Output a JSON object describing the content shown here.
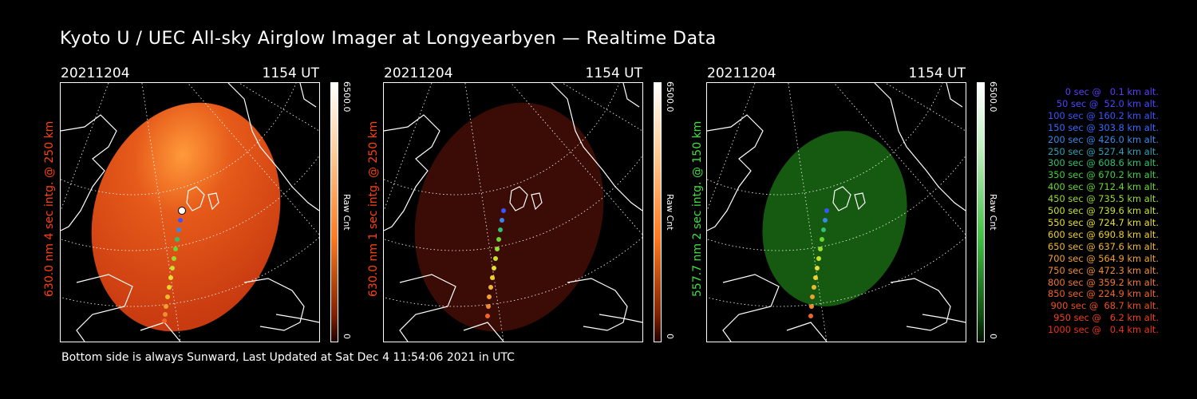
{
  "title": "Kyoto U / UEC All-sky Airglow Imager at Longyearbyen — Realtime Data",
  "footer": "Bottom side is always Sunward, Last Updated at Sat Dec  4 11:54:06 2021 in UTC",
  "panels": [
    {
      "date": "20211204",
      "time": "1154 UT",
      "label": "630.0 nm 4 sec intg. @ 250 km",
      "label_color": "#ff4010",
      "glow": "red",
      "cbar_max": "6500.0",
      "cbar_min": "0",
      "cbar_unit": "Raw Cnt"
    },
    {
      "date": "20211204",
      "time": "1154 UT",
      "label": "630.0 nm 1 sec intg. @ 250 km",
      "label_color": "#ff4010",
      "glow": "darkred",
      "cbar_max": "6500.0",
      "cbar_min": "0",
      "cbar_unit": "Raw Cnt"
    },
    {
      "date": "20211204",
      "time": "1154 UT",
      "label": "557.7 nm 2 sec intg. @ 150 km",
      "label_color": "#40e040",
      "glow": "green",
      "cbar_max": "6500.0",
      "cbar_min": "0",
      "cbar_unit": "Raw Cnt"
    }
  ],
  "legend": [
    {
      "text": "0 sec @   0.1 km alt.",
      "color": "#5a3cff"
    },
    {
      "text": "50 sec @  52.0 km alt.",
      "color": "#4a46ff"
    },
    {
      "text": "100 sec @ 160.2 km alt.",
      "color": "#3a55ff"
    },
    {
      "text": "150 sec @ 303.8 km alt.",
      "color": "#3a6aff"
    },
    {
      "text": "200 sec @ 426.0 km alt.",
      "color": "#3a88e8"
    },
    {
      "text": "250 sec @ 527.4 km alt.",
      "color": "#30a0b8"
    },
    {
      "text": "300 sec @ 608.6 km alt.",
      "color": "#30c070"
    },
    {
      "text": "350 sec @ 670.2 km alt.",
      "color": "#40d040"
    },
    {
      "text": "400 sec @ 712.4 km alt.",
      "color": "#6ad830"
    },
    {
      "text": "450 sec @ 735.5 km alt.",
      "color": "#98dc30"
    },
    {
      "text": "500 sec @ 739.6 km alt.",
      "color": "#c8e030"
    },
    {
      "text": "550 sec @ 724.7 km alt.",
      "color": "#e8e030"
    },
    {
      "text": "600 sec @ 690.8 km alt.",
      "color": "#f0d030"
    },
    {
      "text": "650 sec @ 637.6 km alt.",
      "color": "#f0b830"
    },
    {
      "text": "700 sec @ 564.9 km alt.",
      "color": "#f0a030"
    },
    {
      "text": "750 sec @ 472.3 km alt.",
      "color": "#f08c30"
    },
    {
      "text": "800 sec @ 359.2 km alt.",
      "color": "#f07830"
    },
    {
      "text": "850 sec @ 224.9 km alt.",
      "color": "#f06428"
    },
    {
      "text": "900 sec @  68.7 km alt.",
      "color": "#f05020"
    },
    {
      "text": "950 sec @   6.2 km alt.",
      "color": "#f04020"
    },
    {
      "text": "1000 sec @   0.4 km alt.",
      "color": "#f03018"
    }
  ]
}
